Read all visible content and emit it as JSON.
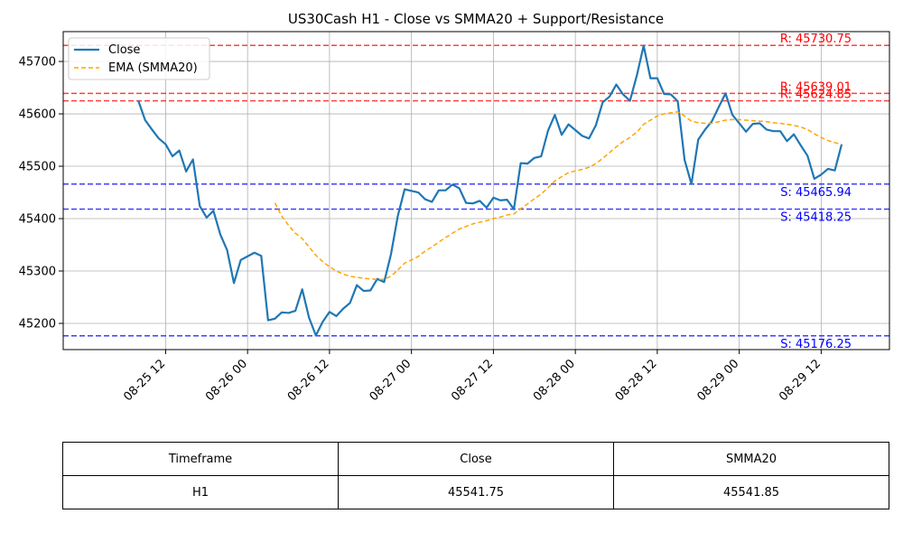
{
  "chart_data": {
    "type": "line",
    "title": "US30Cash H1 - Close vs SMMA20 + Support/Resistance",
    "xlabel": "",
    "ylabel": "",
    "x_range": [
      "2025-08-24 21:00",
      "2025-08-29 22:00"
    ],
    "ylim": [
      45150,
      45757
    ],
    "grid": true,
    "legend_position": "top-left",
    "x_ticks": [
      {
        "t": "2025-08-25 12:00",
        "label": "08-25 12"
      },
      {
        "t": "2025-08-26 00:00",
        "label": "08-26 00"
      },
      {
        "t": "2025-08-26 12:00",
        "label": "08-26 12"
      },
      {
        "t": "2025-08-27 00:00",
        "label": "08-27 00"
      },
      {
        "t": "2025-08-27 12:00",
        "label": "08-27 12"
      },
      {
        "t": "2025-08-28 00:00",
        "label": "08-28 00"
      },
      {
        "t": "2025-08-28 12:00",
        "label": "08-28 12"
      },
      {
        "t": "2025-08-29 00:00",
        "label": "08-29 00"
      },
      {
        "t": "2025-08-29 12:00",
        "label": "08-29 12"
      }
    ],
    "y_ticks": [
      45200,
      45300,
      45400,
      45500,
      45600,
      45700
    ],
    "series": [
      {
        "name": "Close",
        "color": "#1f77b4",
        "style": "solid",
        "points": [
          [
            "2025-08-25 08:00",
            45625
          ],
          [
            "2025-08-25 09:00",
            45588
          ],
          [
            "2025-08-25 10:00",
            45570
          ],
          [
            "2025-08-25 11:00",
            45553
          ],
          [
            "2025-08-25 12:00",
            45542
          ],
          [
            "2025-08-25 13:00",
            45519
          ],
          [
            "2025-08-25 14:00",
            45530
          ],
          [
            "2025-08-25 15:00",
            45490
          ],
          [
            "2025-08-25 16:00",
            45513
          ],
          [
            "2025-08-25 17:00",
            45424
          ],
          [
            "2025-08-25 18:00",
            45402
          ],
          [
            "2025-08-25 19:00",
            45415
          ],
          [
            "2025-08-25 20:00",
            45370
          ],
          [
            "2025-08-25 21:00",
            45340
          ],
          [
            "2025-08-25 22:00",
            45277
          ],
          [
            "2025-08-25 23:00",
            45321
          ],
          [
            "2025-08-26 00:00",
            45328
          ],
          [
            "2025-08-26 01:00",
            45335
          ],
          [
            "2025-08-26 02:00",
            45329
          ],
          [
            "2025-08-26 03:00",
            45206
          ],
          [
            "2025-08-26 04:00",
            45209
          ],
          [
            "2025-08-26 05:00",
            45221
          ],
          [
            "2025-08-26 06:00",
            45220
          ],
          [
            "2025-08-26 07:00",
            45224
          ],
          [
            "2025-08-26 08:00",
            45265
          ],
          [
            "2025-08-26 09:00",
            45211
          ],
          [
            "2025-08-26 10:00",
            45177
          ],
          [
            "2025-08-26 11:00",
            45203
          ],
          [
            "2025-08-26 12:00",
            45222
          ],
          [
            "2025-08-26 13:00",
            45214
          ],
          [
            "2025-08-26 14:00",
            45228
          ],
          [
            "2025-08-26 15:00",
            45239
          ],
          [
            "2025-08-26 16:00",
            45273
          ],
          [
            "2025-08-26 17:00",
            45262
          ],
          [
            "2025-08-26 18:00",
            45263
          ],
          [
            "2025-08-26 19:00",
            45285
          ],
          [
            "2025-08-26 20:00",
            45279
          ],
          [
            "2025-08-26 21:00",
            45332
          ],
          [
            "2025-08-26 22:00",
            45405
          ],
          [
            "2025-08-26 23:00",
            45456
          ],
          [
            "2025-08-27 00:00",
            45453
          ],
          [
            "2025-08-27 01:00",
            45450
          ],
          [
            "2025-08-27 02:00",
            45437
          ],
          [
            "2025-08-27 03:00",
            45432
          ],
          [
            "2025-08-27 04:00",
            45454
          ],
          [
            "2025-08-27 05:00",
            45454
          ],
          [
            "2025-08-27 06:00",
            45465
          ],
          [
            "2025-08-27 07:00",
            45458
          ],
          [
            "2025-08-27 08:00",
            45430
          ],
          [
            "2025-08-27 09:00",
            45429
          ],
          [
            "2025-08-27 10:00",
            45434
          ],
          [
            "2025-08-27 11:00",
            45421
          ],
          [
            "2025-08-27 12:00",
            45440
          ],
          [
            "2025-08-27 13:00",
            45435
          ],
          [
            "2025-08-27 14:00",
            45436
          ],
          [
            "2025-08-27 15:00",
            45418
          ],
          [
            "2025-08-27 16:00",
            45506
          ],
          [
            "2025-08-27 17:00",
            45505
          ],
          [
            "2025-08-27 18:00",
            45516
          ],
          [
            "2025-08-27 19:00",
            45519
          ],
          [
            "2025-08-27 20:00",
            45568
          ],
          [
            "2025-08-27 21:00",
            45598
          ],
          [
            "2025-08-27 22:00",
            45560
          ],
          [
            "2025-08-27 23:00",
            45580
          ],
          [
            "2025-08-28 00:00",
            45569
          ],
          [
            "2025-08-28 01:00",
            45558
          ],
          [
            "2025-08-28 02:00",
            45553
          ],
          [
            "2025-08-28 03:00",
            45578
          ],
          [
            "2025-08-28 04:00",
            45622
          ],
          [
            "2025-08-28 05:00",
            45633
          ],
          [
            "2025-08-28 06:00",
            45656
          ],
          [
            "2025-08-28 07:00",
            45637
          ],
          [
            "2025-08-28 08:00",
            45625
          ],
          [
            "2025-08-28 09:00",
            45673
          ],
          [
            "2025-08-28 10:00",
            45730
          ],
          [
            "2025-08-28 11:00",
            45668
          ],
          [
            "2025-08-28 12:00",
            45668
          ],
          [
            "2025-08-28 13:00",
            45638
          ],
          [
            "2025-08-28 14:00",
            45637
          ],
          [
            "2025-08-28 15:00",
            45624
          ],
          [
            "2025-08-28 16:00",
            45512
          ],
          [
            "2025-08-28 17:00",
            45466
          ],
          [
            "2025-08-28 18:00",
            45551
          ],
          [
            "2025-08-28 19:00",
            45570
          ],
          [
            "2025-08-28 20:00",
            45586
          ],
          [
            "2025-08-28 21:00",
            45613
          ],
          [
            "2025-08-28 22:00",
            45639
          ],
          [
            "2025-08-28 23:00",
            45598
          ],
          [
            "2025-08-29 00:00",
            45582
          ],
          [
            "2025-08-29 01:00",
            45566
          ],
          [
            "2025-08-29 02:00",
            45581
          ],
          [
            "2025-08-29 03:00",
            45582
          ],
          [
            "2025-08-29 04:00",
            45570
          ],
          [
            "2025-08-29 05:00",
            45567
          ],
          [
            "2025-08-29 06:00",
            45567
          ],
          [
            "2025-08-29 07:00",
            45548
          ],
          [
            "2025-08-29 08:00",
            45561
          ],
          [
            "2025-08-29 09:00",
            45540
          ],
          [
            "2025-08-29 10:00",
            45520
          ],
          [
            "2025-08-29 11:00",
            45476
          ],
          [
            "2025-08-29 12:00",
            45484
          ],
          [
            "2025-08-29 13:00",
            45495
          ],
          [
            "2025-08-29 14:00",
            45492
          ],
          [
            "2025-08-29 15:00",
            45541.75
          ]
        ]
      },
      {
        "name": "EMA (SMMA20)",
        "color": "#ffa500",
        "style": "dashed",
        "points": [
          [
            "2025-08-26 04:00",
            45430
          ],
          [
            "2025-08-26 05:00",
            45405
          ],
          [
            "2025-08-26 06:00",
            45387
          ],
          [
            "2025-08-26 07:00",
            45372
          ],
          [
            "2025-08-26 08:00",
            45362
          ],
          [
            "2025-08-26 09:00",
            45346
          ],
          [
            "2025-08-26 10:00",
            45330
          ],
          [
            "2025-08-26 11:00",
            45318
          ],
          [
            "2025-08-26 12:00",
            45308
          ],
          [
            "2025-08-26 13:00",
            45300
          ],
          [
            "2025-08-26 14:00",
            45294
          ],
          [
            "2025-08-26 15:00",
            45290
          ],
          [
            "2025-08-26 16:00",
            45288
          ],
          [
            "2025-08-26 17:00",
            45286
          ],
          [
            "2025-08-26 18:00",
            45285
          ],
          [
            "2025-08-26 19:00",
            45284
          ],
          [
            "2025-08-26 20:00",
            45284
          ],
          [
            "2025-08-26 21:00",
            45290
          ],
          [
            "2025-08-26 22:00",
            45302
          ],
          [
            "2025-08-26 23:00",
            45315
          ],
          [
            "2025-08-27 00:00",
            45321
          ],
          [
            "2025-08-27 01:00",
            45328
          ],
          [
            "2025-08-27 02:00",
            45338
          ],
          [
            "2025-08-27 03:00",
            45346
          ],
          [
            "2025-08-27 04:00",
            45355
          ],
          [
            "2025-08-27 05:00",
            45364
          ],
          [
            "2025-08-27 06:00",
            45372
          ],
          [
            "2025-08-27 07:00",
            45380
          ],
          [
            "2025-08-27 08:00",
            45385
          ],
          [
            "2025-08-27 09:00",
            45390
          ],
          [
            "2025-08-27 10:00",
            45393
          ],
          [
            "2025-08-27 11:00",
            45396
          ],
          [
            "2025-08-27 12:00",
            45400
          ],
          [
            "2025-08-27 13:00",
            45403
          ],
          [
            "2025-08-27 14:00",
            45407
          ],
          [
            "2025-08-27 15:00",
            45409
          ],
          [
            "2025-08-27 16:00",
            45419
          ],
          [
            "2025-08-27 17:00",
            45428
          ],
          [
            "2025-08-27 18:00",
            45438
          ],
          [
            "2025-08-27 19:00",
            45447
          ],
          [
            "2025-08-27 20:00",
            45459
          ],
          [
            "2025-08-27 21:00",
            45472
          ],
          [
            "2025-08-27 22:00",
            45480
          ],
          [
            "2025-08-27 23:00",
            45488
          ],
          [
            "2025-08-28 00:00",
            45491
          ],
          [
            "2025-08-28 01:00",
            45494
          ],
          [
            "2025-08-28 02:00",
            45498
          ],
          [
            "2025-08-28 03:00",
            45505
          ],
          [
            "2025-08-28 04:00",
            45515
          ],
          [
            "2025-08-28 05:00",
            45526
          ],
          [
            "2025-08-28 06:00",
            45537
          ],
          [
            "2025-08-28 07:00",
            45547
          ],
          [
            "2025-08-28 08:00",
            45555
          ],
          [
            "2025-08-28 09:00",
            45565
          ],
          [
            "2025-08-28 10:00",
            45580
          ],
          [
            "2025-08-28 11:00",
            45588
          ],
          [
            "2025-08-28 12:00",
            45596
          ],
          [
            "2025-08-28 13:00",
            45600
          ],
          [
            "2025-08-28 14:00",
            45602
          ],
          [
            "2025-08-28 15:00",
            45604
          ],
          [
            "2025-08-28 16:00",
            45596
          ],
          [
            "2025-08-28 17:00",
            45586
          ],
          [
            "2025-08-28 18:00",
            45583
          ],
          [
            "2025-08-28 19:00",
            45582
          ],
          [
            "2025-08-28 20:00",
            45582
          ],
          [
            "2025-08-28 21:00",
            45585
          ],
          [
            "2025-08-28 22:00",
            45588
          ],
          [
            "2025-08-28 23:00",
            45589
          ],
          [
            "2025-08-29 00:00",
            45589
          ],
          [
            "2025-08-29 01:00",
            45588
          ],
          [
            "2025-08-29 02:00",
            45587
          ],
          [
            "2025-08-29 03:00",
            45586
          ],
          [
            "2025-08-29 04:00",
            45585
          ],
          [
            "2025-08-29 05:00",
            45583
          ],
          [
            "2025-08-29 06:00",
            45582
          ],
          [
            "2025-08-29 07:00",
            45580
          ],
          [
            "2025-08-29 08:00",
            45578
          ],
          [
            "2025-08-29 09:00",
            45575
          ],
          [
            "2025-08-29 10:00",
            45570
          ],
          [
            "2025-08-29 11:00",
            45562
          ],
          [
            "2025-08-29 12:00",
            45555
          ],
          [
            "2025-08-29 13:00",
            45549
          ],
          [
            "2025-08-29 14:00",
            45545
          ],
          [
            "2025-08-29 15:00",
            45541.85
          ]
        ]
      }
    ],
    "levels": [
      {
        "kind": "resistance",
        "value": 45730.75,
        "label": "R: 45730.75",
        "color": "#ff0000"
      },
      {
        "kind": "resistance",
        "value": 45639.01,
        "label": "R: 45639.01",
        "color": "#ff0000"
      },
      {
        "kind": "resistance",
        "value": 45624.85,
        "label": "R: 45624.85",
        "color": "#ff0000"
      },
      {
        "kind": "support",
        "value": 45465.94,
        "label": "S: 45465.94",
        "color": "#0000ff"
      },
      {
        "kind": "support",
        "value": 45418.25,
        "label": "S: 45418.25",
        "color": "#0000ff"
      },
      {
        "kind": "support",
        "value": 45176.25,
        "label": "S: 45176.25",
        "color": "#0000ff"
      }
    ]
  },
  "table": {
    "headers": [
      "Timeframe",
      "Close",
      "SMMA20"
    ],
    "row": [
      "H1",
      "45541.75",
      "45541.85"
    ]
  }
}
